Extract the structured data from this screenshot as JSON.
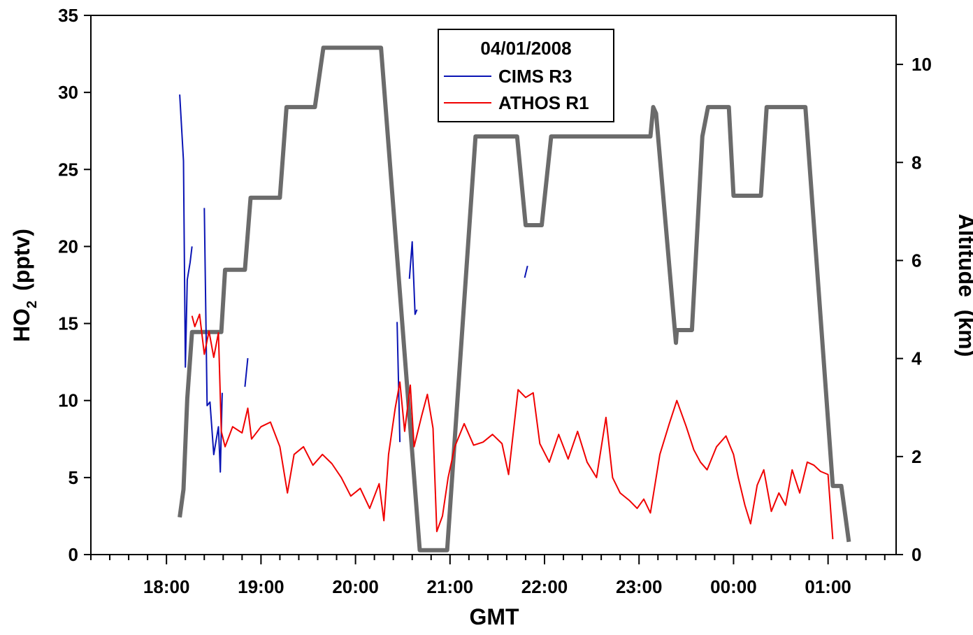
{
  "chart_data": {
    "type": "line",
    "legend_title": "04/01/2008",
    "xlabel": "GMT",
    "ylabel": {
      "main": "HO",
      "sub": "2",
      "unit": "(pptv)"
    },
    "y2label": "Altitude  (km)",
    "xlim": [
      17.2,
      25.72
    ],
    "xticks": [
      {
        "value": 18,
        "label": "18:00"
      },
      {
        "value": 19,
        "label": "19:00"
      },
      {
        "value": 20,
        "label": "20:00"
      },
      {
        "value": 21,
        "label": "21:00"
      },
      {
        "value": 22,
        "label": "22:00"
      },
      {
        "value": 23,
        "label": "23:00"
      },
      {
        "value": 24,
        "label": "00:00"
      },
      {
        "value": 25,
        "label": "01:00"
      }
    ],
    "xminorticks": [
      17.2,
      17.4,
      17.6,
      17.8,
      18.2,
      18.4,
      18.6,
      18.8,
      19.2,
      19.4,
      19.6,
      19.8,
      20.2,
      20.4,
      20.6,
      20.8,
      21.2,
      21.4,
      21.6,
      21.8,
      22.2,
      22.4,
      22.6,
      22.8,
      23.2,
      23.4,
      23.6,
      23.8,
      24.2,
      24.4,
      24.6,
      24.8,
      25.2,
      25.4,
      25.6
    ],
    "ylim": [
      0,
      35
    ],
    "yticks": [
      0,
      5,
      10,
      15,
      20,
      25,
      30,
      35
    ],
    "y2lim": [
      0,
      11
    ],
    "y2ticks": [
      0,
      2,
      4,
      6,
      8,
      10
    ],
    "legend": "upper center",
    "series": [
      {
        "axis": "y2",
        "color": "#6b6b6b",
        "x": [
          18.14,
          18.18,
          18.22,
          18.27,
          18.58,
          18.62,
          18.83,
          18.89,
          19.2,
          19.27,
          19.57,
          19.66,
          20.27,
          20.68,
          20.97,
          21.27,
          21.71,
          21.8,
          21.97,
          22.07,
          23.12,
          23.15,
          23.18,
          23.39,
          23.4,
          23.56,
          23.67,
          23.73,
          23.95,
          24.0,
          24.29,
          24.35,
          24.76,
          25.05,
          25.14,
          25.22
        ],
        "values": [
          0.76,
          1.33,
          3.18,
          4.54,
          4.54,
          5.81,
          5.81,
          7.28,
          7.28,
          9.13,
          9.13,
          10.34,
          10.34,
          0.09,
          0.09,
          8.53,
          8.53,
          6.72,
          6.72,
          8.53,
          8.53,
          9.13,
          9.0,
          4.32,
          4.58,
          4.58,
          8.53,
          9.13,
          9.13,
          7.32,
          7.32,
          9.13,
          9.13,
          1.4,
          1.4,
          0.26
        ]
      },
      {
        "name": "CIMS R3",
        "color": "#0a14b4",
        "x": [
          18.14,
          18.18,
          18.2,
          18.22,
          18.25,
          18.27,
          null,
          18.4,
          18.43,
          18.46,
          18.5,
          18.55,
          18.57,
          18.59,
          null,
          18.83,
          18.86,
          null,
          20.44,
          20.47,
          null,
          20.57,
          20.6,
          20.63,
          20.65,
          null,
          21.79,
          21.82
        ],
        "values": [
          29.86,
          25.55,
          12.17,
          17.84,
          18.97,
          20.0,
          null,
          22.5,
          9.67,
          9.9,
          6.49,
          8.3,
          5.36,
          10.5,
          null,
          10.89,
          12.75,
          null,
          15.1,
          7.3,
          null,
          17.9,
          20.3,
          15.6,
          15.9,
          null,
          17.97,
          18.74
        ]
      },
      {
        "name": "ATHOS R1",
        "color": "#f00000",
        "x": [
          18.27,
          18.3,
          18.35,
          18.4,
          18.45,
          18.5,
          18.55,
          18.58,
          18.62,
          18.7,
          18.8,
          18.86,
          18.9,
          19.0,
          19.1,
          19.2,
          19.28,
          19.35,
          19.45,
          19.55,
          19.65,
          19.75,
          19.85,
          19.95,
          20.05,
          20.15,
          20.25,
          20.3,
          20.35,
          20.42,
          20.47,
          20.52,
          20.58,
          20.62,
          20.7,
          20.76,
          20.82,
          20.86,
          20.92,
          20.98,
          21.05,
          21.15,
          21.25,
          21.35,
          21.45,
          21.55,
          21.62,
          21.72,
          21.8,
          21.88,
          21.95,
          22.05,
          22.15,
          22.25,
          22.35,
          22.45,
          22.55,
          22.65,
          22.72,
          22.8,
          22.9,
          22.98,
          23.05,
          23.12,
          23.22,
          23.32,
          23.4,
          23.5,
          23.58,
          23.65,
          23.72,
          23.82,
          23.92,
          24.0,
          24.05,
          24.12,
          24.18,
          24.25,
          24.32,
          24.4,
          24.48,
          24.55,
          24.62,
          24.7,
          24.78,
          24.85,
          24.92,
          25.0,
          25.05
        ],
        "values": [
          15.5,
          14.8,
          15.6,
          13.0,
          14.5,
          12.8,
          14.4,
          8.0,
          7.0,
          8.3,
          7.9,
          9.5,
          7.5,
          8.3,
          8.6,
          7.0,
          4.0,
          6.5,
          7.0,
          5.8,
          6.5,
          5.9,
          5.0,
          3.8,
          4.3,
          3.0,
          4.6,
          2.2,
          6.5,
          9.5,
          11.2,
          8.0,
          11.0,
          7.0,
          9.0,
          10.4,
          8.2,
          1.5,
          2.5,
          5.0,
          7.0,
          8.5,
          7.1,
          7.3,
          7.8,
          7.2,
          5.2,
          10.7,
          10.2,
          10.5,
          7.2,
          6.0,
          7.8,
          6.2,
          8.0,
          6.0,
          5.0,
          8.9,
          5.0,
          4.0,
          3.5,
          3.0,
          3.6,
          2.7,
          6.5,
          8.5,
          10.0,
          8.3,
          6.8,
          6.0,
          5.5,
          7.0,
          7.7,
          6.5,
          5.0,
          3.2,
          2.0,
          4.5,
          5.5,
          2.8,
          4.0,
          3.2,
          5.5,
          4.0,
          6.0,
          5.8,
          5.4,
          5.2,
          1.0
        ]
      }
    ]
  }
}
